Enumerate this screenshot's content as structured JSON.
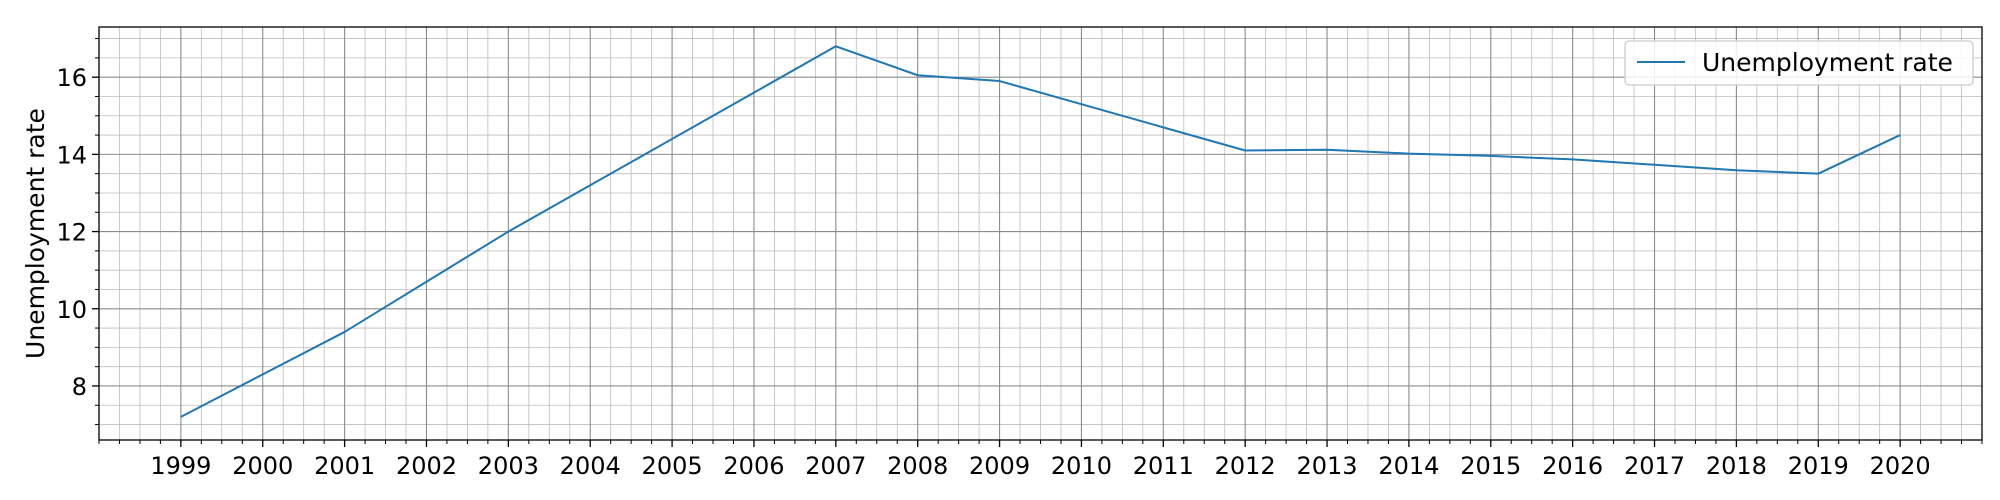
{
  "chart_data": {
    "type": "line",
    "title": "",
    "xlabel": "",
    "ylabel": "Unemployment rate",
    "x": [
      "1999",
      "2000",
      "2001",
      "2002",
      "2003",
      "2004",
      "2005",
      "2006",
      "2007",
      "2008",
      "2009",
      "2010",
      "2011",
      "2012",
      "2013",
      "2014",
      "2015",
      "2016",
      "2017",
      "2018",
      "2019",
      "2020"
    ],
    "series": [
      {
        "name": "Unemployment rate",
        "color": "#1f77b4",
        "values": [
          7.2,
          8.3,
          9.4,
          10.7,
          12.0,
          13.2,
          14.4,
          15.6,
          16.8,
          16.05,
          15.9,
          15.3,
          14.7,
          14.1,
          14.12,
          14.02,
          13.96,
          13.87,
          13.73,
          13.59,
          13.5,
          14.5
        ]
      }
    ],
    "xlim": [
      "1998",
      "2021"
    ],
    "ylim": [
      6.6,
      17.3
    ],
    "y_major_ticks": [
      8,
      10,
      12,
      14,
      16
    ],
    "y_minor_step": 0.5,
    "x_minor_per_year": 4,
    "grid": "major and minor",
    "legend": "top-right"
  }
}
